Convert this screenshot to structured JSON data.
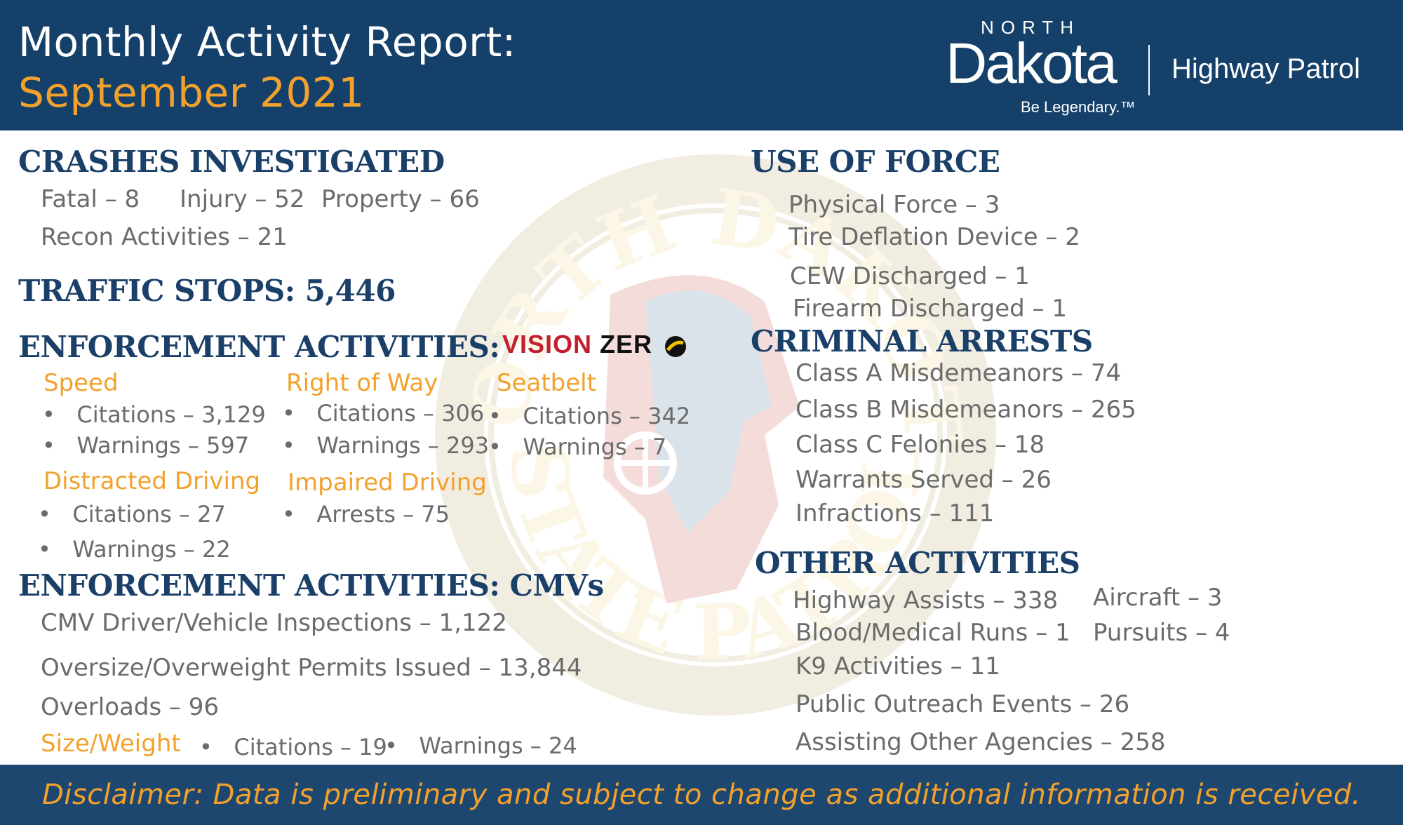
{
  "header": {
    "title_line1": "Monthly Activity Report:",
    "title_line2": "September 2021",
    "logo": {
      "north": "NORTH",
      "dakota": "Dakota",
      "tagline": "Be Legendary.™",
      "agency": "Highway Patrol"
    }
  },
  "watermark": {
    "top_text": "NORTH DAKOTA",
    "bottom_text": "STATE PATROL"
  },
  "crashes": {
    "heading": "CRASHES INVESTIGATED",
    "fatal": "Fatal – 8",
    "injury": "Injury – 52",
    "property": "Property – 66",
    "recon": "Recon Activities – 21"
  },
  "traffic_stops": {
    "heading": "TRAFFIC STOPS: 5,446"
  },
  "enforcement": {
    "heading": "ENFORCEMENT ACTIVITIES:",
    "vision_zero": {
      "part1": "VISION",
      "part2": "ZER"
    },
    "speed": {
      "title": "Speed",
      "citations": "Citations – 3,129",
      "warnings": "Warnings – 597"
    },
    "right_of_way": {
      "title": "Right of Way",
      "citations": "Citations – 306",
      "warnings": "Warnings – 293"
    },
    "seatbelt": {
      "title": "Seatbelt",
      "citations": "Citations – 342",
      "warnings": "Warnings – 7"
    },
    "distracted": {
      "title": "Distracted Driving",
      "citations": "Citations – 27",
      "warnings": "Warnings – 22"
    },
    "impaired": {
      "title": "Impaired Driving",
      "arrests": "Arrests – 75"
    }
  },
  "cmv": {
    "heading": "ENFORCEMENT ACTIVITIES: CMVs",
    "inspections": "CMV Driver/Vehicle Inspections – 1,122",
    "permits": "Oversize/Overweight Permits Issued – 13,844",
    "overloads": "Overloads – 96",
    "size_weight": {
      "title": "Size/Weight",
      "citations": "Citations – 19",
      "warnings": "Warnings – 24"
    }
  },
  "use_of_force": {
    "heading": "USE OF FORCE",
    "items": [
      "Physical Force – 3",
      "Tire Deflation Device – 2",
      "CEW Discharged – 1",
      "Firearm Discharged – 1"
    ]
  },
  "criminal_arrests": {
    "heading": "CRIMINAL ARRESTS",
    "items": [
      "Class A Misdemeanors – 74",
      "Class B Misdemeanors – 265",
      "Class C Felonies – 18",
      "Warrants Served – 26",
      "Infractions – 111"
    ]
  },
  "other_activities": {
    "heading": "OTHER ACTIVITIES",
    "highway_assists": "Highway Assists – 338",
    "aircraft": "Aircraft – 3",
    "blood_medical": "Blood/Medical Runs – 1",
    "pursuits": "Pursuits – 4",
    "k9": "K9 Activities – 11",
    "outreach": "Public Outreach Events –  26",
    "assisting": "Assisting Other Agencies – 258"
  },
  "footer": {
    "disclaimer": "Disclaimer: Data is preliminary and subject to change as additional information is received."
  },
  "colors": {
    "navy": "#154069",
    "heading": "#1a3f68",
    "orange": "#f2a12c",
    "text": "#6b6b6b",
    "vision_red": "#c41e2d"
  }
}
